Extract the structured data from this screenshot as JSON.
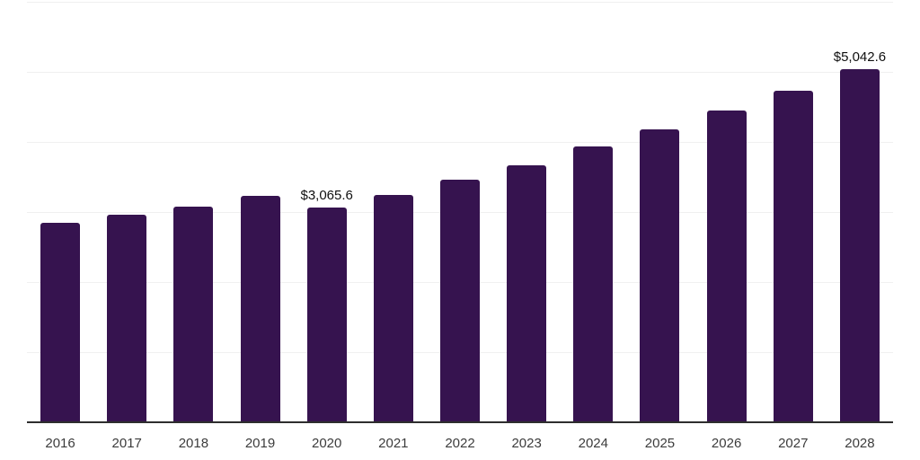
{
  "chart_data": {
    "type": "bar",
    "title": "",
    "xlabel": "",
    "ylabel": "",
    "categories": [
      "2016",
      "2017",
      "2018",
      "2019",
      "2020",
      "2021",
      "2022",
      "2023",
      "2024",
      "2025",
      "2026",
      "2027",
      "2028"
    ],
    "values": [
      2840,
      2960,
      3080,
      3225,
      3065.6,
      3250,
      3465,
      3670,
      3930,
      4175,
      4445,
      4730,
      5042.6
    ],
    "annotations": [
      {
        "category": "2020",
        "label": "$3,065.6"
      },
      {
        "category": "2028",
        "label": "$5,042.6"
      }
    ],
    "ylim": [
      0,
      6000
    ],
    "gridline_interval": 1000,
    "grid": "horizontal",
    "y_tick_labels_shown": false,
    "legend": "none"
  },
  "style": {
    "bar_color": "#36134f",
    "gridline_color": "#f0f0f0",
    "axis_line_color": "#2e2e2e",
    "x_label_color": "#3c3c3c",
    "value_label_color": "#101010",
    "background_color": "#ffffff"
  }
}
